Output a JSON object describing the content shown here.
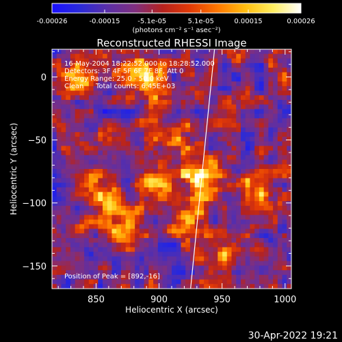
{
  "chart_data": {
    "type": "heatmap",
    "title": "Reconstructed RHESSI Image",
    "xlabel": "Heliocentric X (arcsec)",
    "ylabel": "Heliocentric Y (arcsec)",
    "xlim": [
      815,
      1005
    ],
    "ylim": [
      -168,
      22
    ],
    "x_ticks": [
      850,
      900,
      950,
      1000
    ],
    "y_ticks": [
      0,
      -50,
      -100,
      -150
    ],
    "colorbar": {
      "label": "(photons cm⁻² s⁻¹ asec⁻²)",
      "min": -0.00026,
      "max": 0.00026,
      "ticks": [
        "-0.00026",
        "-0.00015",
        "-5.1e-05",
        "5.1e-05",
        "0.00015",
        "0.00026"
      ],
      "colors": [
        "#1a10ff",
        "#2a2ad8",
        "#5a2fa8",
        "#7f2f7f",
        "#b5221e",
        "#e23a06",
        "#ff7800",
        "#ffbe10",
        "#ffee60",
        "#ffffff"
      ]
    },
    "annotations": [
      "16-May-2004 18:22:52.000 to 18:28:52.000",
      "Detectors: 3F 4F 5F 6F 7F 8F, Att 0",
      "Energy Range: 25.0 - 50.0 keV",
      "Clean",
      "Total counts: 6.45E+03"
    ],
    "peak_label": "Position of Peak = [892,-16]",
    "peak": [
      892,
      -16
    ],
    "limb_line": [
      [
        925,
        -168
      ],
      [
        944,
        22
      ]
    ],
    "grid": false
  },
  "footer": {
    "timestamp": "30-Apr-2022 19:21"
  }
}
